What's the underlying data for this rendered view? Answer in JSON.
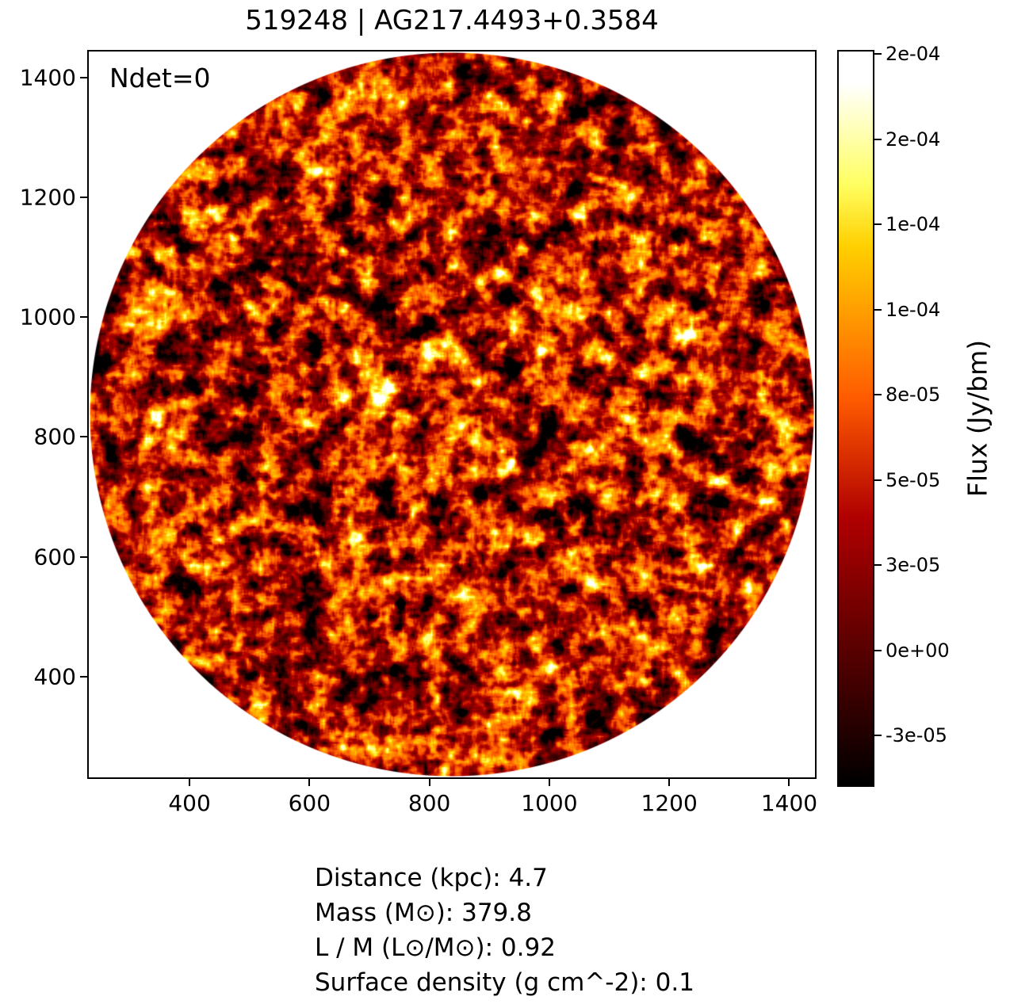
{
  "title": "519248 | AG217.4493+0.3584",
  "annotation": "Ndet=0",
  "colorbar": {
    "label": "Flux (Jy/bm)",
    "tick_labels_top_to_bottom": [
      "2e-04",
      "2e-04",
      "1e-04",
      "1e-04",
      "8e-05",
      "5e-05",
      "3e-05",
      "0e+00",
      "-3e-05"
    ]
  },
  "axes": {
    "x_tick_labels": [
      "400",
      "600",
      "800",
      "1000",
      "1200",
      "1400"
    ],
    "y_tick_labels": [
      "400",
      "600",
      "800",
      "1000",
      "1200",
      "1400"
    ]
  },
  "stats": {
    "lines": [
      "Distance (kpc): 4.7",
      "Mass (M⊙): 379.8",
      "L / M (L⊙/M⊙): 0.92",
      "Surface density (g cm^-2): 0.1"
    ]
  },
  "colors": {
    "background": "#ffffff",
    "spine": "#000000",
    "text": "#000000",
    "colormap_stops": [
      "#000000",
      "#5a0000",
      "#cc2000",
      "#ff5e00",
      "#ffa100",
      "#ffde1f",
      "#ffff9e",
      "#ffffff"
    ]
  },
  "chart_data": {
    "type": "heatmap",
    "title": "519248 | AG217.4493+0.3584",
    "x_ticks": [
      400,
      600,
      800,
      1000,
      1200,
      1400
    ],
    "y_ticks": [
      400,
      600,
      800,
      1000,
      1200,
      1400
    ],
    "x_range": [
      232,
      1443
    ],
    "y_range": [
      232,
      1443
    ],
    "colorbar": {
      "label": "Flux (Jy/bm)",
      "tick_labels_top_to_bottom": [
        "2e-04",
        "2e-04",
        "1e-04",
        "1e-04",
        "8e-05",
        "5e-05",
        "3e-05",
        "0e+00",
        "-3e-05"
      ],
      "tick_values_inferred_top_to_bottom": [
        0.000175,
        0.00015,
        0.000125,
        0.0001,
        7.5e-05,
        5e-05,
        2.5e-05,
        0.0,
        -2.5e-05
      ],
      "colormap": "black-red-orange-yellow-white (gist_heat style)"
    },
    "annotations": [
      "Ndet=0"
    ],
    "image_description": "circular field of view filled with correlated flux noise; area outside the circle is white; no detected sources (Ndet=0)",
    "stats_lines": [
      "Distance (kpc): 4.7",
      "Mass (M⊙): 379.8",
      "L / M (L⊙/M⊙): 0.92",
      "Surface density (g cm^-2): 0.1"
    ]
  }
}
